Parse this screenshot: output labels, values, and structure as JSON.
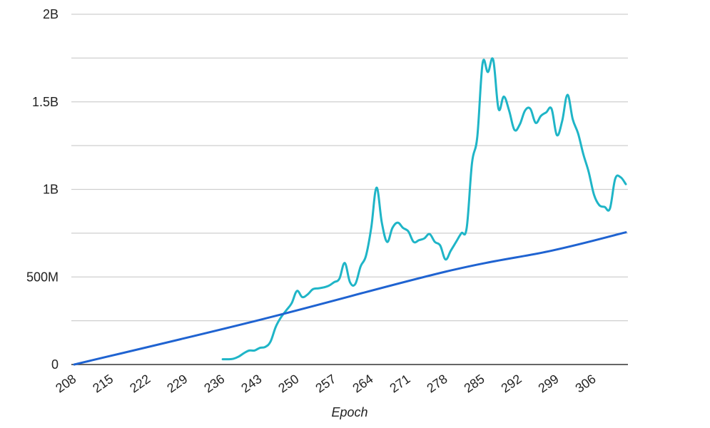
{
  "chart_data": {
    "type": "line",
    "title": "",
    "xlabel": "Epoch",
    "ylabel": "",
    "xlim": [
      208,
      312
    ],
    "ylim": [
      0,
      2000000000
    ],
    "x_tick_labels": [
      "208",
      "215",
      "222",
      "229",
      "236",
      "243",
      "250",
      "257",
      "264",
      "271",
      "278",
      "285",
      "292",
      "299",
      "306"
    ],
    "y_tick_labels": [
      "0",
      "500M",
      "1B",
      "1.5B",
      "2B"
    ],
    "y_tick_values": [
      0,
      500000000,
      1000000000,
      1500000000,
      2000000000
    ],
    "grid": true,
    "legend": "none",
    "series": [
      {
        "color": "#1fb5c7",
        "x": [
          236,
          237,
          238,
          239,
          240,
          241,
          242,
          243,
          244,
          245,
          246,
          247,
          248,
          249,
          250,
          251,
          252,
          253,
          254,
          255,
          256,
          257,
          258,
          259,
          260,
          261,
          262,
          263,
          264,
          265,
          266,
          267,
          268,
          269,
          270,
          271,
          272,
          273,
          274,
          275,
          276,
          277,
          278,
          279,
          280,
          281,
          282,
          283,
          284,
          285,
          286,
          287,
          288,
          289,
          290,
          291,
          292,
          293,
          294,
          295,
          296,
          297,
          298,
          299,
          300,
          301,
          302,
          303,
          304,
          305,
          306,
          307,
          308,
          309,
          310,
          311,
          312
        ],
        "y": [
          30000000,
          30000000,
          33000000,
          45000000,
          65000000,
          80000000,
          80000000,
          95000000,
          100000000,
          130000000,
          215000000,
          270000000,
          310000000,
          350000000,
          420000000,
          385000000,
          400000000,
          430000000,
          435000000,
          440000000,
          450000000,
          470000000,
          490000000,
          580000000,
          470000000,
          460000000,
          560000000,
          620000000,
          780000000,
          1010000000,
          810000000,
          700000000,
          780000000,
          810000000,
          780000000,
          760000000,
          700000000,
          710000000,
          720000000,
          745000000,
          700000000,
          680000000,
          600000000,
          650000000,
          700000000,
          750000000,
          780000000,
          1150000000,
          1300000000,
          1720000000,
          1670000000,
          1740000000,
          1460000000,
          1530000000,
          1450000000,
          1340000000,
          1370000000,
          1450000000,
          1460000000,
          1380000000,
          1420000000,
          1440000000,
          1460000000,
          1310000000,
          1390000000,
          1540000000,
          1400000000,
          1320000000,
          1200000000,
          1100000000,
          970000000,
          910000000,
          900000000,
          890000000,
          1060000000,
          1070000000,
          1030000000
        ]
      },
      {
        "color": "#1f63d1",
        "x": [
          208,
          243,
          278,
          298,
          312
        ],
        "y": [
          0,
          255000000,
          530000000,
          650000000,
          755000000
        ]
      }
    ]
  }
}
